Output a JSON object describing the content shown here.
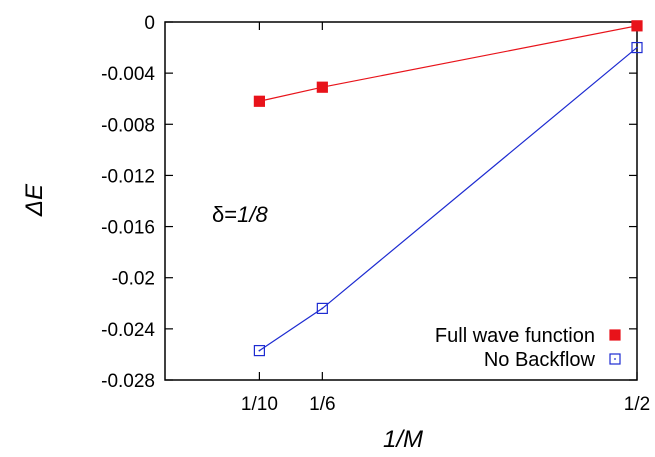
{
  "chart_data": {
    "type": "line",
    "xlabel": "1/M",
    "ylabel": "ΔE",
    "x_ticks": [
      {
        "value": 0.1,
        "label": "1/10"
      },
      {
        "value": 0.16667,
        "label": "1/6"
      },
      {
        "value": 0.5,
        "label": "1/2"
      }
    ],
    "xlim": [
      0.0,
      0.5
    ],
    "y_ticks": [
      {
        "value": 0,
        "label": "0"
      },
      {
        "value": -0.004,
        "label": "-0.004"
      },
      {
        "value": -0.008,
        "label": "-0.008"
      },
      {
        "value": -0.012,
        "label": "-0.012"
      },
      {
        "value": -0.016,
        "label": "-0.016"
      },
      {
        "value": -0.02,
        "label": "-0.02"
      },
      {
        "value": -0.024,
        "label": "-0.024"
      },
      {
        "value": -0.028,
        "label": "-0.028"
      }
    ],
    "ylim": [
      -0.028,
      0.0
    ],
    "grid": false,
    "legend_position": "bottom-right",
    "annotation": {
      "prefix": "δ=",
      "value": "1/8"
    },
    "series": [
      {
        "name": "Full wave function",
        "color": "#e8131a",
        "marker": "filled-square",
        "x": [
          0.1,
          0.16667,
          0.5
        ],
        "y": [
          -0.0062,
          -0.0051,
          -0.0003
        ]
      },
      {
        "name": "No Backflow",
        "color": "#1d2bd1",
        "marker": "open-square",
        "x": [
          0.1,
          0.16667,
          0.5
        ],
        "y": [
          -0.0257,
          -0.0224,
          -0.002
        ]
      }
    ]
  }
}
